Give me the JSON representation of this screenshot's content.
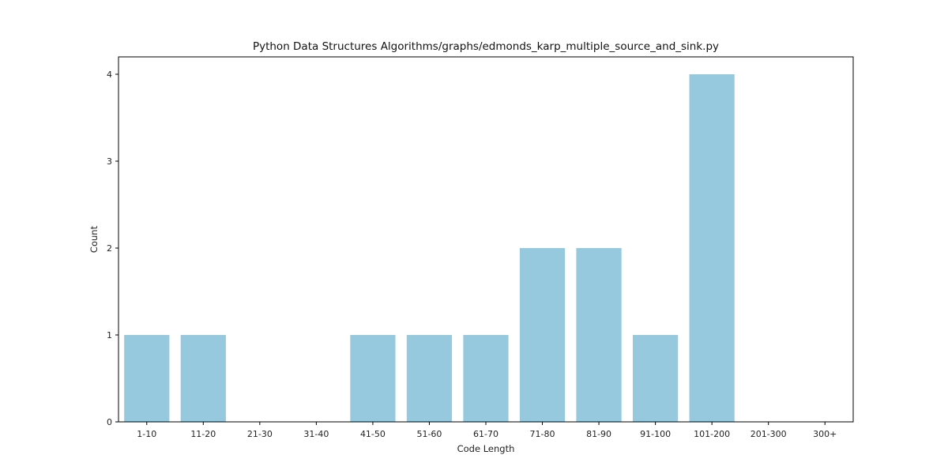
{
  "chart_data": {
    "type": "bar",
    "title": "Python Data Structures Algorithms/graphs/edmonds_karp_multiple_source_and_sink.py",
    "xlabel": "Code Length",
    "ylabel": "Count",
    "categories": [
      "1-10",
      "11-20",
      "21-30",
      "31-40",
      "41-50",
      "51-60",
      "61-70",
      "71-80",
      "81-90",
      "91-100",
      "101-200",
      "201-300",
      "300+"
    ],
    "values": [
      1,
      1,
      0,
      0,
      1,
      1,
      1,
      2,
      2,
      1,
      4,
      0,
      0
    ],
    "ylim": [
      0,
      4.2
    ],
    "yticks": [
      0,
      1,
      2,
      3,
      4
    ],
    "bar_color": "#96c9de",
    "grid": false,
    "legend": "none"
  }
}
